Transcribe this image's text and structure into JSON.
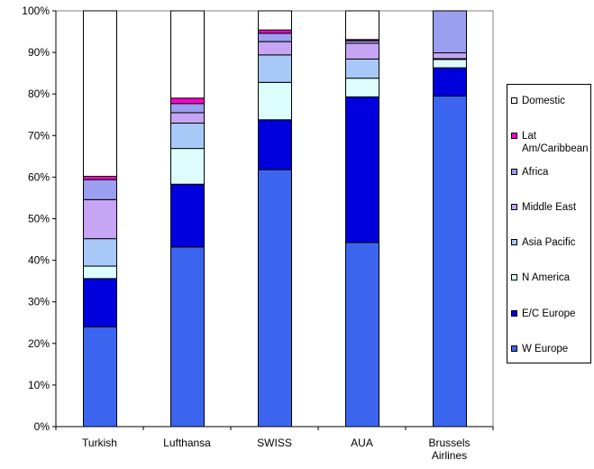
{
  "chart_data": {
    "type": "bar",
    "stacked": true,
    "categories": [
      "Turkish",
      "Lufthansa",
      "SWISS",
      "AUA",
      "Brussels Airlines"
    ],
    "category_labels": [
      [
        "Turkish"
      ],
      [
        "Lufthansa"
      ],
      [
        "SWISS"
      ],
      [
        "AUA"
      ],
      [
        "Brussels",
        "Airlines"
      ]
    ],
    "ylim": [
      0,
      100
    ],
    "yticks": [
      0,
      10,
      20,
      30,
      40,
      50,
      60,
      70,
      80,
      90,
      100
    ],
    "ytick_labels": [
      "0%",
      "10%",
      "20%",
      "30%",
      "40%",
      "50%",
      "60%",
      "70%",
      "80%",
      "90%",
      "100%"
    ],
    "grid": false,
    "legend_position": "right",
    "series": [
      {
        "name": "W Europe",
        "color": "#3b65ef",
        "values": [
          24,
          43.2,
          61.8,
          44.3,
          79.5
        ]
      },
      {
        "name": "E/C Europe",
        "color": "#0000dc",
        "values": [
          11.6,
          15.1,
          12,
          35,
          6.8
        ]
      },
      {
        "name": "N America",
        "color": "#ddfdfd",
        "values": [
          3,
          8.6,
          9,
          4.5,
          2
        ]
      },
      {
        "name": "Asia Pacific",
        "color": "#a8c9f8",
        "values": [
          6.6,
          6.1,
          6.6,
          4.6,
          0.2
        ]
      },
      {
        "name": "Middle East",
        "color": "#c6a5f4",
        "values": [
          9.4,
          2.5,
          3.2,
          3.8,
          1.4
        ]
      },
      {
        "name": "Africa",
        "color": "#9b9ff0",
        "values": [
          4.8,
          2.2,
          2,
          0.6,
          10.1
        ]
      },
      {
        "name": "Lat Am/Caribbean",
        "color": "#ff00cc",
        "values": [
          0.8,
          1.3,
          0.8,
          0.3,
          0
        ]
      },
      {
        "name": "Domestic",
        "color": "#ffffff",
        "values": [
          39.8,
          21,
          4.6,
          6.9,
          0
        ]
      }
    ],
    "legend_order": [
      "Domestic",
      "Lat Am/Caribbean",
      "Africa",
      "Middle East",
      "Asia Pacific",
      "N America",
      "E/C Europe",
      "W Europe"
    ],
    "legend_display_lines": {
      "Lat Am/Caribbean": [
        "Lat",
        "Am/Caribbean"
      ]
    }
  }
}
